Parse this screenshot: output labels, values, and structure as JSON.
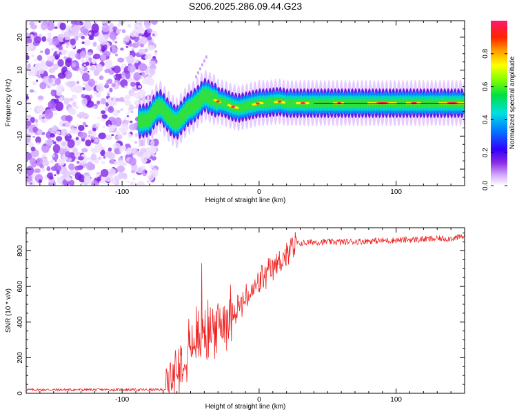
{
  "figure_title": "S206.2025.286.09.44.G23",
  "chart_data": [
    {
      "type": "heatmap",
      "name": "spectrogram",
      "xlabel": "Height of straight line (km)",
      "ylabel": "Frequency (Hz)",
      "xlim": [
        -170,
        150
      ],
      "ylim": [
        -25,
        25
      ],
      "xticks": [
        -100,
        0,
        100
      ],
      "yticks": [
        -20,
        -10,
        0,
        10,
        20
      ],
      "ridge": {
        "x": [
          -87,
          -80,
          -76,
          -72,
          -68,
          -64,
          -60,
          -56,
          -52,
          -48,
          -44,
          -40,
          -35,
          -30,
          -25,
          -20,
          -15,
          -10,
          -5,
          0,
          5,
          10,
          15,
          20,
          30,
          40,
          60,
          80,
          100,
          120,
          140,
          150
        ],
        "y": [
          -5.5,
          -5,
          -2,
          -1,
          -3,
          -5,
          -6,
          -4,
          -2,
          -1,
          0.5,
          2.5,
          1.5,
          0.5,
          0,
          -1,
          -1.5,
          -1,
          -0.5,
          0,
          0,
          0.3,
          0.5,
          0,
          0,
          0,
          0,
          0,
          0,
          0,
          0,
          0
        ]
      },
      "noise_region_x": [
        -170,
        -75
      ],
      "colorbar": {
        "label": "Normalized spectral amplitude",
        "range": [
          0,
          1
        ],
        "ticks": [
          "0.0",
          "0.2",
          "0.4",
          "0.6",
          "0.8"
        ]
      }
    },
    {
      "type": "line",
      "name": "snr",
      "xlabel": "Height of straight line (km)",
      "ylabel": "SNR (10 * v/v)",
      "xlim": [
        -170,
        150
      ],
      "ylim": [
        0,
        930
      ],
      "xticks": [
        -100,
        0,
        100
      ],
      "yticks": [
        0,
        200,
        400,
        600,
        800
      ],
      "color": "#ee2222",
      "profile": {
        "x": [
          -170,
          -70,
          -67,
          -60,
          -50,
          -40,
          -30,
          -20,
          -10,
          0,
          10,
          20,
          28,
          40,
          60,
          80,
          100,
          120,
          140,
          150
        ],
        "y": [
          20,
          20,
          30,
          150,
          280,
          330,
          380,
          460,
          520,
          620,
          700,
          780,
          840,
          850,
          850,
          855,
          860,
          865,
          870,
          880
        ]
      }
    }
  ]
}
